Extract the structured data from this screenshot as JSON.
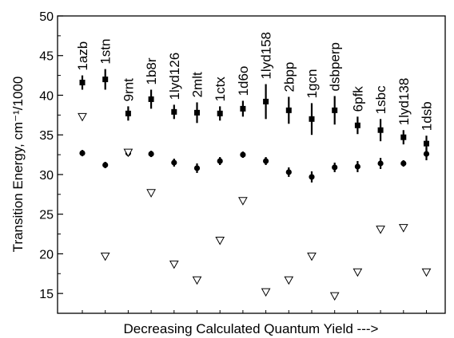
{
  "chart_data": {
    "type": "scatter",
    "xlabel": "Decreasing Calculated Quantum Yield --->",
    "ylabel": "Transition Energy, cm⁻¹/1000",
    "ylim": [
      12.5,
      50
    ],
    "yticks": [
      15,
      20,
      25,
      30,
      35,
      40,
      45,
      50
    ],
    "grid": false,
    "categories": [
      "1azb",
      "1stn",
      "9rnt",
      "1b8r",
      "1lyd126",
      "2mlt",
      "1ctx",
      "1d6o",
      "1lyd158",
      "2bpp",
      "1gcn",
      "dsbperp",
      "6pfk",
      "1sbc",
      "1lyd138",
      "1dsb"
    ],
    "series": [
      {
        "marker": "square",
        "values": [
          41.6,
          42.0,
          37.7,
          39.5,
          37.9,
          37.8,
          37.7,
          38.3,
          39.2,
          38.1,
          37.0,
          38.1,
          36.2,
          35.6,
          34.7,
          33.9
        ],
        "errors": [
          0.9,
          1.3,
          0.9,
          1.2,
          0.9,
          1.3,
          0.9,
          1.0,
          2.2,
          1.7,
          2.0,
          1.8,
          1.1,
          1.4,
          0.9,
          1.0
        ]
      },
      {
        "marker": "circle",
        "values": [
          32.7,
          31.2,
          32.7,
          32.6,
          31.5,
          30.8,
          31.7,
          32.5,
          31.7,
          30.3,
          29.7,
          30.9,
          31.0,
          31.4,
          31.4,
          32.6
        ],
        "errors": [
          0.4,
          0.4,
          0.4,
          0.4,
          0.5,
          0.6,
          0.5,
          0.4,
          0.5,
          0.6,
          0.7,
          0.6,
          0.7,
          0.7,
          0.4,
          0.8
        ]
      },
      {
        "marker": "triangle-down",
        "values": [
          37.3,
          19.7,
          32.8,
          27.7,
          18.7,
          16.7,
          21.7,
          26.7,
          15.2,
          16.7,
          19.7,
          14.7,
          17.7,
          23.1,
          23.3,
          17.7
        ]
      }
    ]
  }
}
